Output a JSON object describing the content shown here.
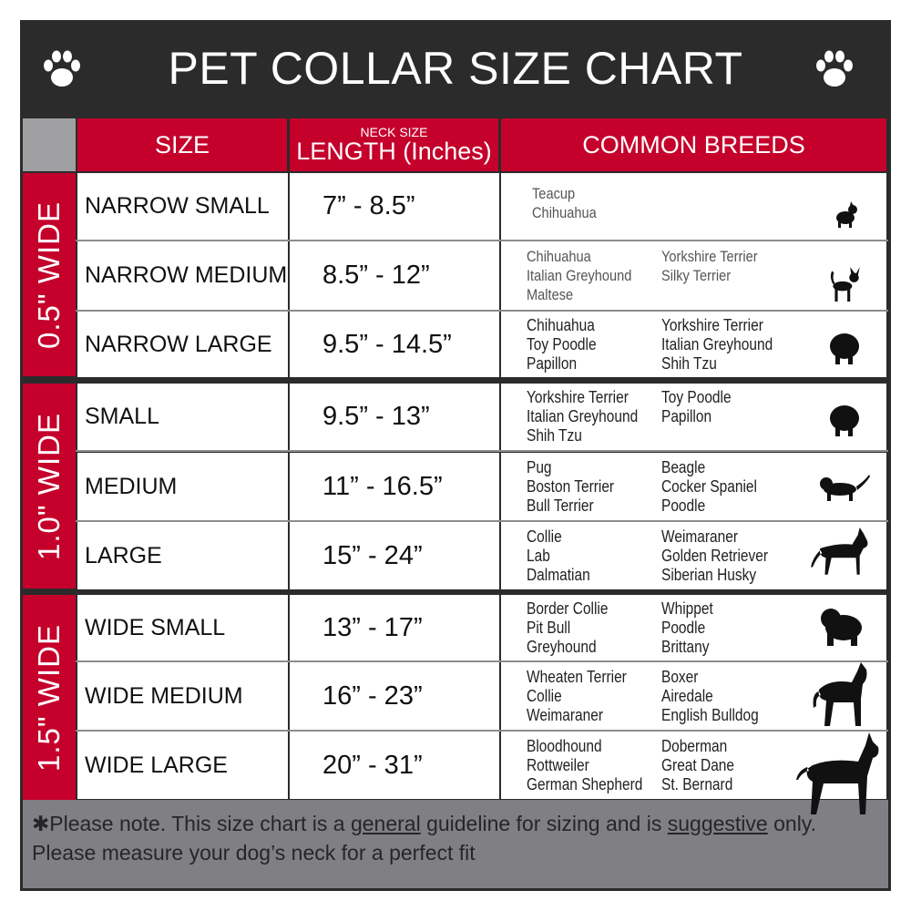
{
  "title": "PET COLLAR SIZE CHART",
  "colors": {
    "header_bg": "#2b2b2b",
    "accent_red": "#c4002b",
    "footer_bg": "#808084"
  },
  "icons": {
    "corner": "paw-print-icon"
  },
  "columns": {
    "size": "SIZE",
    "length_small": "NECK SIZE",
    "length": "LENGTH (Inches)",
    "breeds": "COMMON BREEDS"
  },
  "groups": [
    "0.5\" WIDE",
    "1.0\" WIDE",
    "1.5\" WIDE"
  ],
  "rows": [
    {
      "size": "NARROW SMALL",
      "length": "7” - 8.5”",
      "breeds_left": [
        "Teacup",
        "Chihuahua"
      ],
      "breeds_right": [],
      "icon": "yorkie-silhouette-icon"
    },
    {
      "size": "NARROW MEDIUM",
      "length": "8.5” - 12”",
      "breeds_left": [
        "Chihuahua",
        "Italian Greyhound",
        "Maltese"
      ],
      "breeds_right": [
        "Yorkshire Terrier",
        "Silky Terrier"
      ],
      "icon": "chihuahua-silhouette-icon"
    },
    {
      "size": "NARROW LARGE",
      "length": "9.5” - 14.5”",
      "breeds_left": [
        "Chihuahua",
        "Toy Poodle",
        "Papillon"
      ],
      "breeds_right": [
        "Yorkshire Terrier",
        "Italian Greyhound",
        "Shih Tzu"
      ],
      "icon": "pomeranian-silhouette-icon"
    },
    {
      "size": "SMALL",
      "length": "9.5” - 13”",
      "breeds_left": [
        "Yorkshire Terrier",
        "Italian Greyhound",
        "Shih Tzu"
      ],
      "breeds_right": [
        "Toy Poodle",
        "Papillon"
      ],
      "icon": "pomeranian-silhouette-icon"
    },
    {
      "size": "MEDIUM",
      "length": "11” - 16.5”",
      "breeds_left": [
        "Pug",
        "Boston Terrier",
        "Bull Terrier"
      ],
      "breeds_right": [
        "Beagle",
        "Cocker Spaniel",
        "Poodle"
      ],
      "icon": "dachshund-silhouette-icon"
    },
    {
      "size": "LARGE",
      "length": "15” - 24”",
      "breeds_left": [
        "Collie",
        "Lab",
        "Dalmatian"
      ],
      "breeds_right": [
        "Weimaraner",
        "Golden Retriever",
        "Siberian Husky"
      ],
      "icon": "shepherd-silhouette-icon"
    },
    {
      "size": "WIDE SMALL",
      "length": "13” - 17”",
      "breeds_left": [
        "Border Collie",
        "Pit Bull",
        "Greyhound"
      ],
      "breeds_right": [
        "Whippet",
        "Poodle",
        "Brittany"
      ],
      "icon": "bulldog-silhouette-icon"
    },
    {
      "size": "WIDE MEDIUM",
      "length": "16” - 23”",
      "breeds_left": [
        "Wheaten Terrier",
        "Collie",
        "Weimaraner"
      ],
      "breeds_right": [
        "Boxer",
        "Airedale",
        "English Bulldog"
      ],
      "icon": "pitbull-silhouette-icon"
    },
    {
      "size": "WIDE LARGE",
      "length": "20” - 31”",
      "breeds_left": [
        "Bloodhound",
        "Rottweiler",
        "German Shepherd"
      ],
      "breeds_right": [
        "Doberman",
        "Great Dane",
        "St. Bernard"
      ],
      "icon": "doberman-silhouette-icon"
    }
  ],
  "footer": {
    "prefix": "✱Please note. This size chart is a ",
    "general": "general",
    "middle": " guideline for sizing and is ",
    "suggestive": "suggestive",
    "suffix": " only.",
    "line2": "Please measure your dog’s neck for a perfect fit"
  }
}
